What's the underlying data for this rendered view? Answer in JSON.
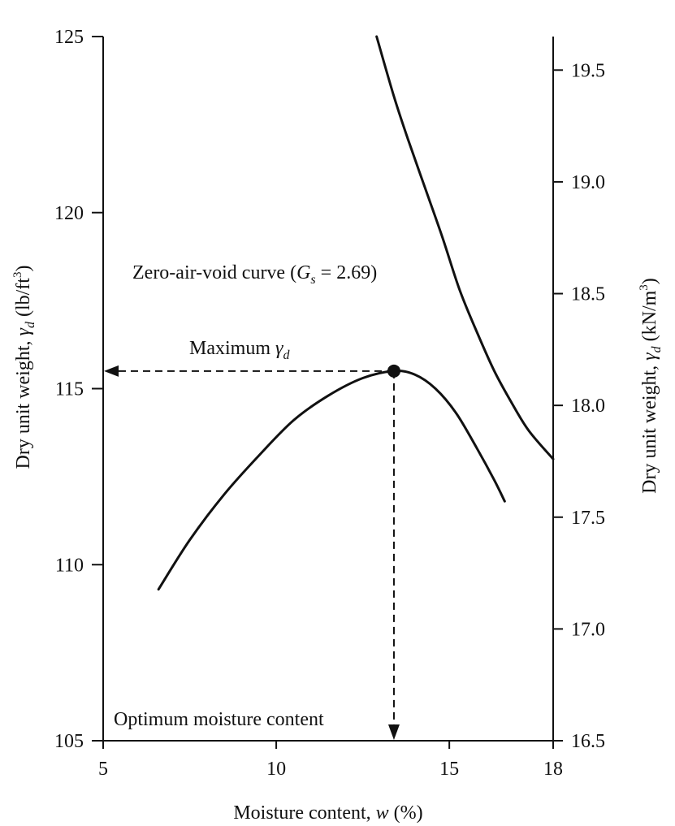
{
  "chart_data": {
    "type": "line",
    "title": "",
    "xlabel": "Moisture content, w (%)",
    "ylabel_left": "Dry unit weight, γd (lb/ft³)",
    "ylabel_right": "Dry unit weight, γd (kN/m³)",
    "xlim": [
      5,
      18
    ],
    "ylim": [
      105,
      125
    ],
    "ylim_right": [
      16.5,
      19.65
    ],
    "x_ticks": [
      5,
      10,
      15,
      18
    ],
    "y_ticks": [
      105,
      110,
      115,
      120,
      125
    ],
    "y_ticks_right": [
      16.5,
      17.0,
      17.5,
      18.0,
      18.5,
      19.0,
      19.5
    ],
    "grid": false,
    "series": [
      {
        "name": "",
        "values_x": [
          6.6,
          7.5,
          8.5,
          9.5,
          10.5,
          11.5,
          12.5,
          13.4,
          14.0,
          14.6,
          15.2,
          15.8,
          16.3,
          16.6
        ],
        "values_y": [
          109.3,
          110.7,
          112.0,
          113.1,
          114.1,
          114.8,
          115.3,
          115.5,
          115.4,
          115.0,
          114.3,
          113.3,
          112.4,
          111.8
        ]
      },
      {
        "name": "Zero-air-void curve",
        "values_x": [
          12.9,
          13.4,
          13.8,
          14.3,
          14.8,
          15.3,
          15.8,
          16.3,
          16.8,
          17.3,
          18.0
        ],
        "values_y": [
          125.0,
          123.3,
          122.1,
          120.7,
          119.3,
          117.8,
          116.6,
          115.5,
          114.6,
          113.8,
          113.0
        ]
      }
    ],
    "max_point": {
      "x": 13.4,
      "y": 115.5
    },
    "annotations": {
      "zav_prefix": "Zero-air-void curve (",
      "zav_sym": "G",
      "zav_sub": "s",
      "zav_suffix": " = 2.69)",
      "max_prefix": "Maximum ",
      "max_sym": "γ",
      "max_sub": "d",
      "omc": "Optimum moisture content"
    },
    "labels": {
      "x_prefix": "Moisture content, ",
      "x_sym": "w",
      "x_suffix": " (%)",
      "yl_prefix": "Dry unit weight, ",
      "yl_sym": "γ",
      "yl_sub": "d",
      "yl_unit_pre": " (lb/ft",
      "yl_unit_sup": "3",
      "yl_unit_post": ")",
      "yr_prefix": "Dry unit weight, ",
      "yr_sym": "γ",
      "yr_sub": "d",
      "yr_unit_pre": " (kN/m",
      "yr_unit_sup": "3",
      "yr_unit_post": ")"
    },
    "colors": {
      "ink": "#111111",
      "background": "#ffffff"
    }
  }
}
